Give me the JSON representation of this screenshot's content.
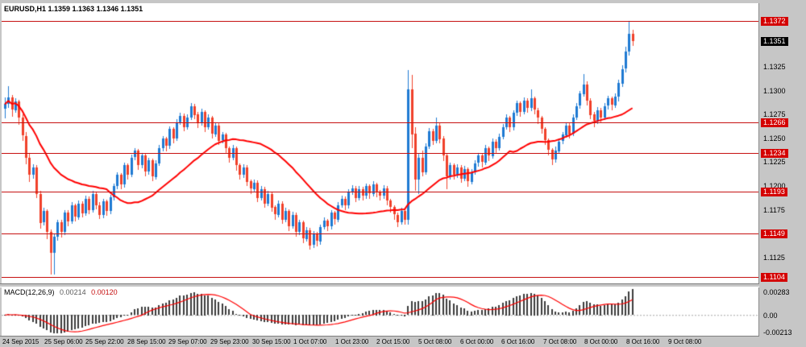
{
  "window": {
    "title": "EURUSD,H1 1.1359 1.1363 1.1346 1.1351"
  },
  "chart_data": {
    "type": "candlestick",
    "symbol": "EURUSD",
    "timeframe": "H1",
    "ohlc": {
      "open": "1.1359",
      "high": "1.1363",
      "low": "1.1346",
      "close": "1.1351"
    },
    "colors": {
      "bull": "#1e7ad2",
      "bear": "#f0402a",
      "ma": "#ff0000",
      "level": "#c61111",
      "tag_bg": "#d40000",
      "tag_current_bg": "#000000",
      "macd_bar": "#3c3c3c",
      "macd_signal": "#ff0000",
      "chart_bg": "#ffffff",
      "chrome_bg": "#c6c6c6"
    },
    "price_axis": {
      "max": 1.1391,
      "min": 1.1097,
      "ticks": [
        1.1325,
        1.13,
        1.1275,
        1.125,
        1.1225,
        1.12,
        1.1175,
        1.1125
      ]
    },
    "levels": [
      {
        "price": 1.1372,
        "label": "1.1372"
      },
      {
        "price": 1.1266,
        "label": "1.1266"
      },
      {
        "price": 1.1234,
        "label": "1.1234"
      },
      {
        "price": 1.1193,
        "label": "1.1193"
      },
      {
        "price": 1.1149,
        "label": "1.1149"
      },
      {
        "price": 1.1104,
        "label": "1.1104"
      }
    ],
    "current_price": {
      "value": 1.1351,
      "label": "1.1351"
    },
    "moving_average": {
      "period": 30,
      "color": "#ff0000"
    },
    "indicator": {
      "name": "MACD(12,26,9)",
      "main_value": "0.00214",
      "signal_value": "0.00120",
      "axis": {
        "max": 0.00283,
        "min": -0.00213,
        "max_label": "0.00283",
        "zero_label": "0.00",
        "min_label": "-0.00213"
      }
    },
    "time_axis": {
      "labels": [
        "24 Sep 2015",
        "25 Sep 06:00",
        "25 Sep 22:00",
        "28 Sep 15:00",
        "29 Sep 07:00",
        "29 Sep 23:00",
        "30 Sep 15:00",
        "1 Oct 07:00",
        "1 Oct 23:00",
        "2 Oct 15:00",
        "5 Oct 08:00",
        "6 Oct 00:00",
        "6 Oct 16:00",
        "7 Oct 08:00",
        "8 Oct 00:00",
        "8 Oct 16:00",
        "9 Oct 08:00"
      ]
    },
    "candles": [
      [
        1.128,
        1.1292,
        1.127,
        1.1285
      ],
      [
        1.1285,
        1.1304,
        1.1281,
        1.1292
      ],
      [
        1.1292,
        1.1295,
        1.1272,
        1.1279
      ],
      [
        1.1279,
        1.1291,
        1.1276,
        1.1288
      ],
      [
        1.1288,
        1.129,
        1.1264,
        1.1271
      ],
      [
        1.1271,
        1.1274,
        1.1246,
        1.1252
      ],
      [
        1.1252,
        1.1256,
        1.1222,
        1.1229
      ],
      [
        1.1229,
        1.1234,
        1.1204,
        1.1211
      ],
      [
        1.1211,
        1.1222,
        1.1207,
        1.1219
      ],
      [
        1.1219,
        1.1221,
        1.1186,
        1.1191
      ],
      [
        1.1191,
        1.1194,
        1.1154,
        1.1161
      ],
      [
        1.1161,
        1.1176,
        1.1157,
        1.1173
      ],
      [
        1.1173,
        1.1175,
        1.1144,
        1.1151
      ],
      [
        1.1151,
        1.1154,
        1.1107,
        1.1129
      ],
      [
        1.1129,
        1.1149,
        1.1106,
        1.1146
      ],
      [
        1.1146,
        1.1164,
        1.1142,
        1.1161
      ],
      [
        1.1161,
        1.1164,
        1.1145,
        1.1151
      ],
      [
        1.1151,
        1.1174,
        1.1148,
        1.1171
      ],
      [
        1.1171,
        1.1174,
        1.1157,
        1.1162
      ],
      [
        1.1162,
        1.1182,
        1.1159,
        1.1179
      ],
      [
        1.1179,
        1.1181,
        1.1162,
        1.1167
      ],
      [
        1.1167,
        1.1184,
        1.1164,
        1.1181
      ],
      [
        1.1181,
        1.1183,
        1.1166,
        1.1171
      ],
      [
        1.1171,
        1.1189,
        1.1168,
        1.1186
      ],
      [
        1.1186,
        1.1188,
        1.1169,
        1.1174
      ],
      [
        1.1174,
        1.1194,
        1.1171,
        1.1191
      ],
      [
        1.1191,
        1.1193,
        1.1174,
        1.1179
      ],
      [
        1.1179,
        1.1182,
        1.1164,
        1.1169
      ],
      [
        1.1169,
        1.1186,
        1.1166,
        1.1183
      ],
      [
        1.1183,
        1.1185,
        1.1168,
        1.1173
      ],
      [
        1.1173,
        1.119,
        1.117,
        1.1187
      ],
      [
        1.1187,
        1.1202,
        1.1184,
        1.1199
      ],
      [
        1.1199,
        1.1214,
        1.1196,
        1.1211
      ],
      [
        1.1211,
        1.1213,
        1.1196,
        1.1201
      ],
      [
        1.1201,
        1.1224,
        1.1198,
        1.1221
      ],
      [
        1.1221,
        1.1223,
        1.1206,
        1.1211
      ],
      [
        1.1211,
        1.1232,
        1.1208,
        1.1229
      ],
      [
        1.1229,
        1.1239,
        1.1226,
        1.1236
      ],
      [
        1.1236,
        1.1238,
        1.1216,
        1.1221
      ],
      [
        1.1221,
        1.1234,
        1.1218,
        1.1231
      ],
      [
        1.1231,
        1.1233,
        1.1209,
        1.1214
      ],
      [
        1.1214,
        1.1229,
        1.1211,
        1.1226
      ],
      [
        1.1226,
        1.1228,
        1.1204,
        1.1209
      ],
      [
        1.1209,
        1.1226,
        1.1206,
        1.1223
      ],
      [
        1.1223,
        1.1242,
        1.122,
        1.1239
      ],
      [
        1.1239,
        1.1252,
        1.1236,
        1.1249
      ],
      [
        1.1249,
        1.1251,
        1.1236,
        1.1241
      ],
      [
        1.1241,
        1.1262,
        1.1238,
        1.1259
      ],
      [
        1.1259,
        1.1261,
        1.1244,
        1.1249
      ],
      [
        1.1249,
        1.1269,
        1.1246,
        1.1266
      ],
      [
        1.1266,
        1.1276,
        1.1263,
        1.1273
      ],
      [
        1.1273,
        1.1275,
        1.1256,
        1.1261
      ],
      [
        1.1261,
        1.1274,
        1.1258,
        1.1271
      ],
      [
        1.1271,
        1.1286,
        1.1268,
        1.1283
      ],
      [
        1.1283,
        1.1285,
        1.1269,
        1.1274
      ],
      [
        1.1274,
        1.1277,
        1.126,
        1.1265
      ],
      [
        1.1265,
        1.128,
        1.1262,
        1.1277
      ],
      [
        1.1277,
        1.1279,
        1.1256,
        1.1261
      ],
      [
        1.1261,
        1.1274,
        1.1258,
        1.1271
      ],
      [
        1.1271,
        1.1273,
        1.1249,
        1.1254
      ],
      [
        1.1254,
        1.1266,
        1.1251,
        1.1263
      ],
      [
        1.1263,
        1.1265,
        1.1242,
        1.1247
      ],
      [
        1.1247,
        1.1256,
        1.1244,
        1.1253
      ],
      [
        1.1253,
        1.1255,
        1.1234,
        1.1239
      ],
      [
        1.1239,
        1.1241,
        1.1224,
        1.1229
      ],
      [
        1.1229,
        1.1242,
        1.1226,
        1.1239
      ],
      [
        1.1239,
        1.1241,
        1.1216,
        1.1221
      ],
      [
        1.1221,
        1.1223,
        1.1206,
        1.1211
      ],
      [
        1.1211,
        1.1222,
        1.1208,
        1.1219
      ],
      [
        1.1219,
        1.1221,
        1.1199,
        1.1204
      ],
      [
        1.1204,
        1.1206,
        1.1191,
        1.1196
      ],
      [
        1.1196,
        1.1206,
        1.1193,
        1.1203
      ],
      [
        1.1203,
        1.1205,
        1.1182,
        1.1187
      ],
      [
        1.1187,
        1.1199,
        1.1184,
        1.1196
      ],
      [
        1.1196,
        1.1198,
        1.1176,
        1.1181
      ],
      [
        1.1181,
        1.1194,
        1.1178,
        1.1191
      ],
      [
        1.1191,
        1.1193,
        1.1172,
        1.1177
      ],
      [
        1.1177,
        1.1179,
        1.1164,
        1.1169
      ],
      [
        1.1169,
        1.1184,
        1.1166,
        1.1181
      ],
      [
        1.1181,
        1.1183,
        1.1159,
        1.1164
      ],
      [
        1.1164,
        1.1176,
        1.1161,
        1.1173
      ],
      [
        1.1173,
        1.1175,
        1.1152,
        1.1157
      ],
      [
        1.1157,
        1.1172,
        1.1154,
        1.1169
      ],
      [
        1.1169,
        1.1171,
        1.1146,
        1.1151
      ],
      [
        1.1151,
        1.1164,
        1.1148,
        1.1161
      ],
      [
        1.1161,
        1.1163,
        1.1139,
        1.1144
      ],
      [
        1.1144,
        1.1156,
        1.1141,
        1.1153
      ],
      [
        1.1153,
        1.1155,
        1.1132,
        1.1137
      ],
      [
        1.1137,
        1.1152,
        1.1134,
        1.1149
      ],
      [
        1.1149,
        1.1151,
        1.1136,
        1.1141
      ],
      [
        1.1141,
        1.1159,
        1.1138,
        1.1156
      ],
      [
        1.1156,
        1.1166,
        1.1153,
        1.1163
      ],
      [
        1.1163,
        1.1165,
        1.1152,
        1.1157
      ],
      [
        1.1157,
        1.1174,
        1.1154,
        1.1171
      ],
      [
        1.1171,
        1.1173,
        1.1159,
        1.1164
      ],
      [
        1.1164,
        1.1182,
        1.1161,
        1.1179
      ],
      [
        1.1179,
        1.1189,
        1.1176,
        1.1186
      ],
      [
        1.1186,
        1.1188,
        1.1174,
        1.1179
      ],
      [
        1.1179,
        1.1196,
        1.1176,
        1.1193
      ],
      [
        1.1193,
        1.12,
        1.119,
        1.1197
      ],
      [
        1.1197,
        1.1199,
        1.1182,
        1.1187
      ],
      [
        1.1187,
        1.1199,
        1.1184,
        1.1196
      ],
      [
        1.1196,
        1.1198,
        1.1184,
        1.1189
      ],
      [
        1.1189,
        1.1202,
        1.1186,
        1.1199
      ],
      [
        1.1199,
        1.1201,
        1.1186,
        1.1191
      ],
      [
        1.1191,
        1.1204,
        1.1188,
        1.1201
      ],
      [
        1.1201,
        1.1203,
        1.1188,
        1.1193
      ],
      [
        1.1193,
        1.1195,
        1.1184,
        1.1189
      ],
      [
        1.1189,
        1.12,
        1.1186,
        1.1197
      ],
      [
        1.1197,
        1.1199,
        1.1179,
        1.1184
      ],
      [
        1.1184,
        1.1186,
        1.1172,
        1.1177
      ],
      [
        1.1177,
        1.1179,
        1.1164,
        1.1169
      ],
      [
        1.1169,
        1.1171,
        1.1156,
        1.1161
      ],
      [
        1.1161,
        1.1176,
        1.1158,
        1.1173
      ],
      [
        1.1173,
        1.1175,
        1.1159,
        1.1164
      ],
      [
        1.1164,
        1.1321,
        1.1159,
        1.1301
      ],
      [
        1.1301,
        1.1316,
        1.1239,
        1.1254
      ],
      [
        1.1254,
        1.1261,
        1.1194,
        1.1206
      ],
      [
        1.1206,
        1.1233,
        1.1191,
        1.1229
      ],
      [
        1.1229,
        1.1236,
        1.1209,
        1.1214
      ],
      [
        1.1214,
        1.1244,
        1.1211,
        1.1241
      ],
      [
        1.1241,
        1.126,
        1.1238,
        1.1257
      ],
      [
        1.1257,
        1.1259,
        1.1242,
        1.1247
      ],
      [
        1.1247,
        1.1271,
        1.1244,
        1.1263
      ],
      [
        1.1263,
        1.1265,
        1.1244,
        1.1249
      ],
      [
        1.1249,
        1.1252,
        1.1226,
        1.1231
      ],
      [
        1.1231,
        1.1233,
        1.1196,
        1.1209
      ],
      [
        1.1209,
        1.1224,
        1.1206,
        1.1221
      ],
      [
        1.1221,
        1.1223,
        1.1206,
        1.1211
      ],
      [
        1.1211,
        1.1222,
        1.1208,
        1.1219
      ],
      [
        1.1219,
        1.1221,
        1.1202,
        1.1207
      ],
      [
        1.1207,
        1.122,
        1.1204,
        1.1217
      ],
      [
        1.1217,
        1.1219,
        1.1199,
        1.1204
      ],
      [
        1.1204,
        1.1217,
        1.1201,
        1.1214
      ],
      [
        1.1214,
        1.1226,
        1.1211,
        1.1223
      ],
      [
        1.1223,
        1.1234,
        1.122,
        1.1231
      ],
      [
        1.1231,
        1.1233,
        1.1219,
        1.1224
      ],
      [
        1.1224,
        1.1242,
        1.1221,
        1.1239
      ],
      [
        1.1239,
        1.1241,
        1.1226,
        1.1231
      ],
      [
        1.1231,
        1.1249,
        1.1228,
        1.1246
      ],
      [
        1.1246,
        1.1248,
        1.1234,
        1.1239
      ],
      [
        1.1239,
        1.1254,
        1.1236,
        1.1251
      ],
      [
        1.1251,
        1.1264,
        1.1248,
        1.1261
      ],
      [
        1.1261,
        1.1274,
        1.1258,
        1.1271
      ],
      [
        1.1271,
        1.1273,
        1.1256,
        1.1261
      ],
      [
        1.1261,
        1.1279,
        1.1258,
        1.1276
      ],
      [
        1.1276,
        1.1289,
        1.1273,
        1.1286
      ],
      [
        1.1286,
        1.1288,
        1.1272,
        1.1277
      ],
      [
        1.1277,
        1.1292,
        1.1274,
        1.1289
      ],
      [
        1.1289,
        1.1291,
        1.1276,
        1.1281
      ],
      [
        1.1281,
        1.1301,
        1.1278,
        1.1291
      ],
      [
        1.1291,
        1.1293,
        1.1274,
        1.1279
      ],
      [
        1.1279,
        1.1281,
        1.1264,
        1.1271
      ],
      [
        1.1271,
        1.1273,
        1.1254,
        1.1259
      ],
      [
        1.1259,
        1.1261,
        1.1242,
        1.1247
      ],
      [
        1.1247,
        1.1249,
        1.1231,
        1.1237
      ],
      [
        1.1237,
        1.1239,
        1.1221,
        1.1227
      ],
      [
        1.1227,
        1.1241,
        1.1224,
        1.1236
      ],
      [
        1.1236,
        1.1249,
        1.1233,
        1.1246
      ],
      [
        1.1246,
        1.1256,
        1.1243,
        1.1253
      ],
      [
        1.1253,
        1.1266,
        1.125,
        1.1263
      ],
      [
        1.1263,
        1.1265,
        1.1249,
        1.1254
      ],
      [
        1.1254,
        1.1274,
        1.1251,
        1.1271
      ],
      [
        1.1271,
        1.1286,
        1.1268,
        1.1283
      ],
      [
        1.1283,
        1.1299,
        1.128,
        1.1296
      ],
      [
        1.1296,
        1.1317,
        1.1293,
        1.1306
      ],
      [
        1.1306,
        1.1309,
        1.1284,
        1.1289
      ],
      [
        1.1289,
        1.1291,
        1.1269,
        1.1274
      ],
      [
        1.1274,
        1.1277,
        1.1261,
        1.1267
      ],
      [
        1.1267,
        1.1282,
        1.1264,
        1.1279
      ],
      [
        1.1279,
        1.1281,
        1.1266,
        1.1271
      ],
      [
        1.1271,
        1.1286,
        1.1268,
        1.1283
      ],
      [
        1.1283,
        1.1294,
        1.128,
        1.1291
      ],
      [
        1.1291,
        1.1293,
        1.1279,
        1.1284
      ],
      [
        1.1284,
        1.1296,
        1.1281,
        1.1293
      ],
      [
        1.1293,
        1.1311,
        1.1288,
        1.1307
      ],
      [
        1.1307,
        1.1326,
        1.1303,
        1.1322
      ],
      [
        1.1322,
        1.1345,
        1.1318,
        1.134
      ],
      [
        1.134,
        1.1372,
        1.1336,
        1.1359
      ],
      [
        1.1359,
        1.1363,
        1.1346,
        1.1351
      ]
    ]
  }
}
